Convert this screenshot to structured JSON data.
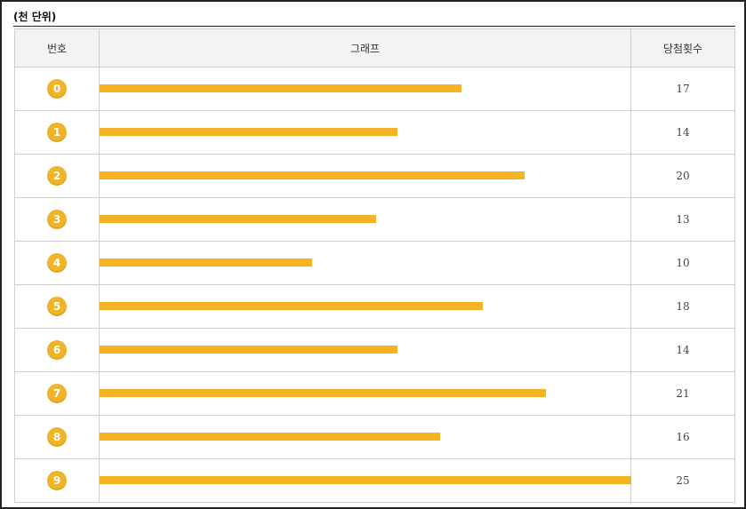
{
  "unit_note": "(천 단위)",
  "headers": {
    "number": "번호",
    "graph": "그래프",
    "count": "당첨횟수"
  },
  "colors": {
    "ball": "#f0b429",
    "bar": "#f5b324",
    "header_bg": "#f3f3f3"
  },
  "chart_data": {
    "type": "bar",
    "orientation": "horizontal",
    "categories": [
      "0",
      "1",
      "2",
      "3",
      "4",
      "5",
      "6",
      "7",
      "8",
      "9"
    ],
    "values": [
      17,
      14,
      20,
      13,
      10,
      18,
      14,
      21,
      16,
      25
    ],
    "xlim": [
      0,
      25
    ],
    "grid": false
  }
}
